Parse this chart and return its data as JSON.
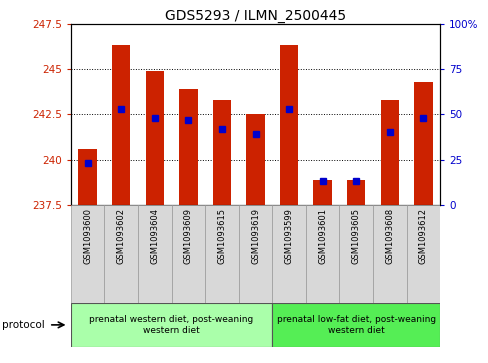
{
  "title": "GDS5293 / ILMN_2500445",
  "samples": [
    "GSM1093600",
    "GSM1093602",
    "GSM1093604",
    "GSM1093609",
    "GSM1093615",
    "GSM1093619",
    "GSM1093599",
    "GSM1093601",
    "GSM1093605",
    "GSM1093608",
    "GSM1093612"
  ],
  "bar_values": [
    240.6,
    246.3,
    244.9,
    243.9,
    243.3,
    242.5,
    246.3,
    238.9,
    238.9,
    243.3,
    244.3
  ],
  "percentile_values": [
    239.8,
    242.8,
    242.3,
    242.2,
    241.7,
    241.4,
    242.8,
    238.85,
    238.85,
    241.5,
    242.3
  ],
  "y_min": 237.5,
  "y_max": 247.5,
  "y_ticks": [
    237.5,
    240.0,
    242.5,
    245.0,
    247.5
  ],
  "y_tick_labels": [
    "237.5",
    "240",
    "242.5",
    "245",
    "247.5"
  ],
  "right_y_ticks": [
    0,
    25,
    50,
    75,
    100
  ],
  "right_y_tick_labels": [
    "0",
    "25",
    "50",
    "75",
    "100%"
  ],
  "right_y_tick_positions": [
    237.5,
    240.0,
    242.5,
    245.0,
    247.5
  ],
  "bar_color": "#cc2200",
  "percentile_color": "#0000cc",
  "group1_label": "prenatal western diet, post-weaning\nwestern diet",
  "group2_label": "prenatal low-fat diet, post-weaning\nwestern diet",
  "group1_indices": [
    0,
    1,
    2,
    3,
    4,
    5
  ],
  "group2_indices": [
    6,
    7,
    8,
    9,
    10
  ],
  "group1_color": "#aaffaa",
  "group2_color": "#55ee55",
  "protocol_label": "protocol",
  "tick_label_color_left": "#cc2200",
  "tick_label_color_right": "#0000cc",
  "bar_base": 237.5,
  "percentile_marker_size": 4,
  "bar_width": 0.55
}
